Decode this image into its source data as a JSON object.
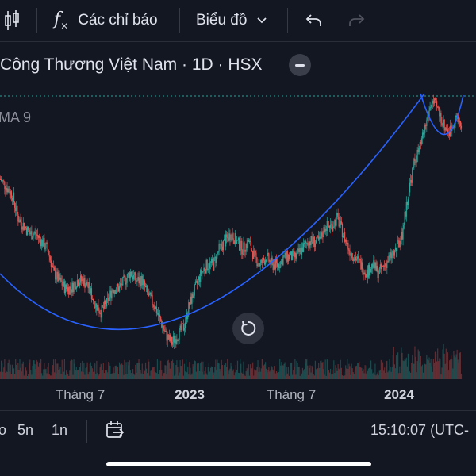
{
  "toolbar": {
    "candles_icon": "candlestick-icon",
    "indicators_label": "Các chỉ báo",
    "indicators_icon": "function-icon",
    "chart_label": "Biểu đồ",
    "undo_icon": "undo-icon",
    "redo_icon": "redo-icon"
  },
  "legend": {
    "title": "Công Thương Việt Nam · 1D · HSX",
    "ma": "MA 9"
  },
  "time_axis": {
    "labels": [
      "Tháng 7",
      "2023",
      "Tháng 7",
      "2024"
    ]
  },
  "bottom_bar": {
    "range_partial": "o",
    "range_5y": "5n",
    "range_1y": "1n",
    "goto_date_icon": "calendar-goto-icon",
    "clock": "15:10:07 (UTC-"
  },
  "colors": {
    "background": "#131722",
    "up": "#26a69a",
    "down": "#ef5350",
    "curve": "#2962ff",
    "price_line": "#26a69a"
  },
  "chart_data": {
    "type": "candlestick",
    "instrument": "Công Thương Việt Nam · 1D · HSX",
    "indicator": "MA 9",
    "x_ticks": [
      "Tháng 7",
      "2023",
      "Tháng 7",
      "2024"
    ],
    "close_series": [
      29,
      28,
      27,
      24,
      23,
      22,
      22,
      21,
      20,
      17,
      16,
      15,
      15,
      16,
      16,
      15,
      13,
      12,
      13,
      15,
      15,
      16,
      17,
      16,
      16,
      14,
      13,
      11,
      9,
      8,
      9,
      10,
      13,
      15,
      17,
      18,
      18,
      20,
      21,
      22,
      21,
      20,
      21,
      19,
      18,
      19,
      18,
      18,
      19,
      19,
      19,
      20,
      21,
      21,
      21,
      23,
      23,
      24,
      22,
      20,
      19,
      18,
      17,
      18,
      17,
      18,
      19,
      20,
      22,
      27,
      31,
      33,
      36,
      39,
      38,
      36,
      35,
      37,
      36
    ],
    "annotations": [
      "cup curve",
      "handle curve"
    ]
  }
}
